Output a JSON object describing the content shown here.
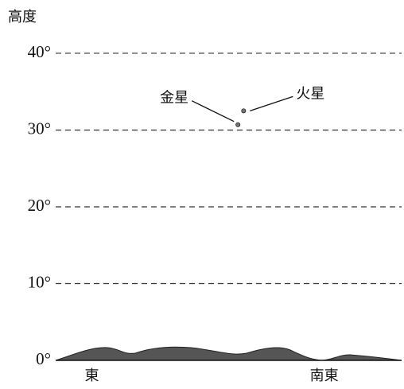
{
  "chart_data": {
    "type": "scatter",
    "ylabel": "高度",
    "xlim": [
      83,
      150
    ],
    "xticks": [
      {
        "value": 90,
        "label": "東"
      },
      {
        "value": 135,
        "label": "南東"
      }
    ],
    "ylim": [
      0,
      43
    ],
    "yticks": [
      {
        "value": 0,
        "label": "0°"
      },
      {
        "value": 10,
        "label": "10°"
      },
      {
        "value": 20,
        "label": "20°"
      },
      {
        "value": 30,
        "label": "30°"
      },
      {
        "value": 40,
        "label": "40°"
      }
    ],
    "grid": true,
    "series": [
      {
        "name": "金星",
        "color": "#777777",
        "x": [
          118.3
        ],
        "values": [
          30.7
        ]
      },
      {
        "name": "火星",
        "color": "#777777",
        "x": [
          119.4
        ],
        "values": [
          32.5
        ]
      }
    ]
  }
}
